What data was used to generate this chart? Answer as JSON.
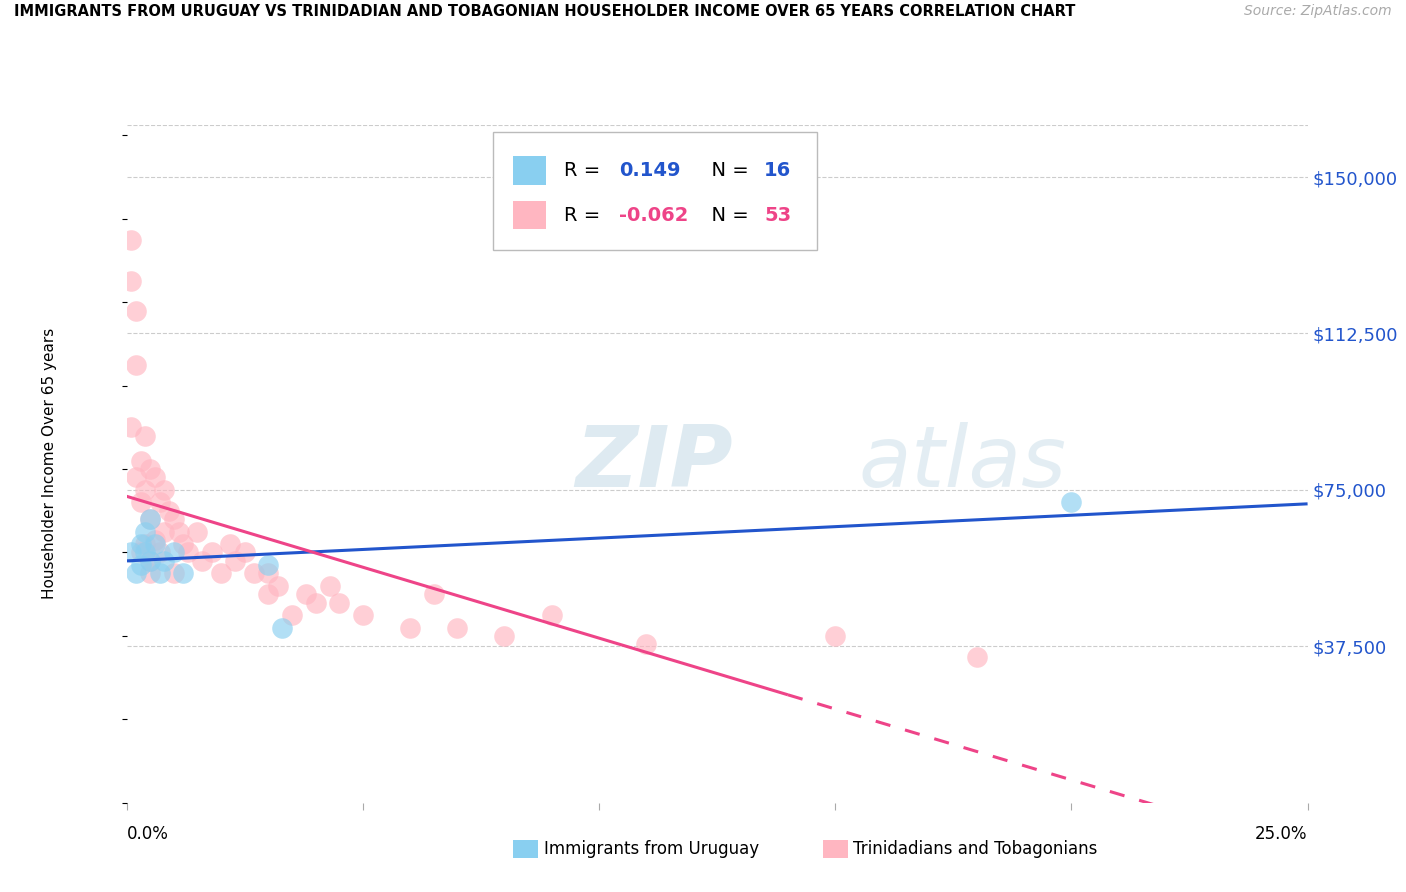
{
  "title": "IMMIGRANTS FROM URUGUAY VS TRINIDADIAN AND TOBAGONIAN HOUSEHOLDER INCOME OVER 65 YEARS CORRELATION CHART",
  "source": "Source: ZipAtlas.com",
  "ylabel": "Householder Income Over 65 years",
  "xlim": [
    0.0,
    0.25
  ],
  "ylim": [
    0,
    162500
  ],
  "yticks": [
    37500,
    75000,
    112500,
    150000
  ],
  "ytick_labels": [
    "$37,500",
    "$75,000",
    "$112,500",
    "$150,000"
  ],
  "r_uruguay": 0.149,
  "n_uruguay": 16,
  "r_trinidad": -0.062,
  "n_trinidad": 53,
  "color_uruguay": "#89CFF0",
  "color_trinidad": "#FFB6C1",
  "line_color_uruguay": "#2255CC",
  "line_color_trinidad": "#EE4488",
  "blue_text": "#2255CC",
  "pink_text": "#EE4488",
  "legend_labels": [
    "Immigrants from Uruguay",
    "Trinidadians and Tobagonians"
  ],
  "uruguay_x": [
    0.001,
    0.002,
    0.003,
    0.003,
    0.004,
    0.004,
    0.005,
    0.005,
    0.006,
    0.007,
    0.008,
    0.01,
    0.012,
    0.03,
    0.033,
    0.2
  ],
  "uruguay_y": [
    60000,
    55000,
    62000,
    57000,
    65000,
    60000,
    68000,
    58000,
    62000,
    55000,
    58000,
    60000,
    55000,
    57000,
    42000,
    72000
  ],
  "trinidad_x": [
    0.001,
    0.001,
    0.001,
    0.002,
    0.002,
    0.002,
    0.003,
    0.003,
    0.003,
    0.004,
    0.004,
    0.004,
    0.005,
    0.005,
    0.005,
    0.005,
    0.006,
    0.006,
    0.007,
    0.007,
    0.008,
    0.008,
    0.009,
    0.01,
    0.01,
    0.011,
    0.012,
    0.013,
    0.015,
    0.016,
    0.018,
    0.02,
    0.022,
    0.023,
    0.025,
    0.027,
    0.03,
    0.03,
    0.032,
    0.035,
    0.038,
    0.04,
    0.043,
    0.045,
    0.05,
    0.06,
    0.065,
    0.07,
    0.08,
    0.09,
    0.11,
    0.15,
    0.18
  ],
  "trinidad_y": [
    135000,
    125000,
    90000,
    118000,
    105000,
    78000,
    82000,
    72000,
    60000,
    88000,
    75000,
    62000,
    80000,
    68000,
    58000,
    55000,
    78000,
    63000,
    72000,
    60000,
    75000,
    65000,
    70000,
    68000,
    55000,
    65000,
    62000,
    60000,
    65000,
    58000,
    60000,
    55000,
    62000,
    58000,
    60000,
    55000,
    55000,
    50000,
    52000,
    45000,
    50000,
    48000,
    52000,
    48000,
    45000,
    42000,
    50000,
    42000,
    40000,
    45000,
    38000,
    40000,
    35000
  ]
}
